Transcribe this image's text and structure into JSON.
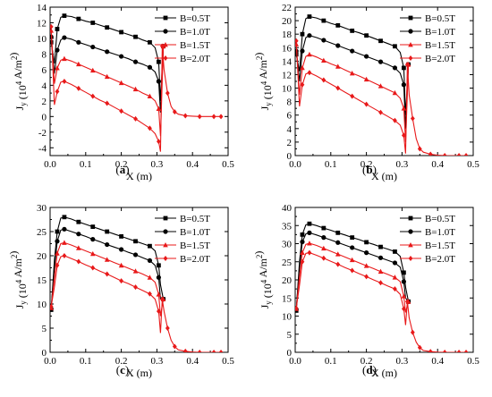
{
  "figure": {
    "xlabel": "X (m)",
    "ylabel_main": "J",
    "ylabel_sub": "y",
    "ylabel_unit": "(10",
    "ylabel_exp": "4",
    "ylabel_rest": " A/m",
    "ylabel_exp2": "2",
    "ylabel_close": ")"
  },
  "chart_data": [
    {
      "type": "line",
      "panel_label": "(a)",
      "xlabel": "X (m)",
      "ylabel": "Jy (10^4 A/m^2)",
      "xlim": [
        0.0,
        0.5
      ],
      "ylim": [
        -5,
        14
      ],
      "xticks": [
        0.0,
        0.1,
        0.2,
        0.3,
        0.4,
        0.5
      ],
      "yticks": [
        -4,
        -2,
        0,
        2,
        4,
        6,
        8,
        10,
        12,
        14
      ],
      "legend_position": "top-right",
      "series": [
        {
          "name": "B=0.5T",
          "marker": "square",
          "color": "#000000",
          "x": [
            0.003,
            0.012,
            0.02,
            0.03,
            0.04,
            0.06,
            0.08,
            0.1,
            0.12,
            0.14,
            0.16,
            0.18,
            0.2,
            0.22,
            0.24,
            0.26,
            0.28,
            0.295,
            0.305,
            0.31,
            0.318
          ],
          "y": [
            9.5,
            6.8,
            11.2,
            12.7,
            12.9,
            12.8,
            12.5,
            12.2,
            12.0,
            11.7,
            11.4,
            11.1,
            10.8,
            10.5,
            10.2,
            9.8,
            9.5,
            8.8,
            7.0,
            2.0,
            9.0
          ]
        },
        {
          "name": "B=1.0T",
          "marker": "circle",
          "color": "#000000",
          "x": [
            0.003,
            0.012,
            0.02,
            0.03,
            0.04,
            0.06,
            0.08,
            0.1,
            0.12,
            0.14,
            0.16,
            0.18,
            0.2,
            0.22,
            0.24,
            0.26,
            0.28,
            0.295,
            0.305,
            0.31,
            0.318
          ],
          "y": [
            10.2,
            5.5,
            8.5,
            9.8,
            10.1,
            9.9,
            9.5,
            9.2,
            8.9,
            8.6,
            8.3,
            8.0,
            7.7,
            7.4,
            7.0,
            6.7,
            6.3,
            5.7,
            4.5,
            0.5,
            9.0
          ]
        },
        {
          "name": "B=1.5T",
          "marker": "triangle",
          "color": "#e8191a",
          "x": [
            0.003,
            0.012,
            0.02,
            0.03,
            0.04,
            0.06,
            0.08,
            0.1,
            0.12,
            0.14,
            0.16,
            0.18,
            0.2,
            0.22,
            0.24,
            0.26,
            0.28,
            0.295,
            0.305,
            0.31,
            0.318
          ],
          "y": [
            11.0,
            4.2,
            6.2,
            7.2,
            7.4,
            7.1,
            6.7,
            6.3,
            5.9,
            5.5,
            5.1,
            4.7,
            4.3,
            3.9,
            3.5,
            3.0,
            2.6,
            2.0,
            1.0,
            -2.5,
            9.0
          ]
        },
        {
          "name": "B=2.0T",
          "marker": "diamond",
          "color": "#e8191a",
          "x": [
            0.003,
            0.012,
            0.02,
            0.03,
            0.04,
            0.06,
            0.08,
            0.1,
            0.12,
            0.14,
            0.16,
            0.18,
            0.2,
            0.22,
            0.24,
            0.26,
            0.28,
            0.295,
            0.305,
            0.31,
            0.315,
            0.32,
            0.33,
            0.34,
            0.35,
            0.36,
            0.38,
            0.4,
            0.42,
            0.44,
            0.46,
            0.48
          ],
          "y": [
            11.5,
            1.5,
            3.2,
            4.4,
            4.5,
            4.1,
            3.6,
            3.1,
            2.6,
            2.1,
            1.7,
            1.2,
            0.7,
            0.2,
            -0.3,
            -0.9,
            -1.5,
            -2.2,
            -3.2,
            -4.5,
            9.0,
            6.0,
            3.0,
            1.3,
            0.6,
            0.3,
            0.1,
            0.05,
            0.0,
            0.0,
            0.0,
            0.0
          ]
        }
      ]
    },
    {
      "type": "line",
      "panel_label": "(b)",
      "xlabel": "X (m)",
      "ylabel": "Jy (10^4 A/m^2)",
      "xlim": [
        0.0,
        0.5
      ],
      "ylim": [
        0,
        22
      ],
      "xticks": [
        0.0,
        0.1,
        0.2,
        0.3,
        0.4,
        0.5
      ],
      "yticks": [
        0,
        2,
        4,
        6,
        8,
        10,
        12,
        14,
        16,
        18,
        20,
        22
      ],
      "legend_position": "top-right",
      "series": [
        {
          "name": "B=0.5T",
          "marker": "square",
          "color": "#000000",
          "x": [
            0.003,
            0.012,
            0.02,
            0.03,
            0.04,
            0.06,
            0.08,
            0.1,
            0.12,
            0.14,
            0.16,
            0.18,
            0.2,
            0.22,
            0.24,
            0.26,
            0.28,
            0.295,
            0.305,
            0.31,
            0.318
          ],
          "y": [
            15.0,
            12.5,
            18.0,
            20.3,
            20.6,
            20.4,
            20.0,
            19.6,
            19.3,
            18.9,
            18.5,
            18.2,
            17.8,
            17.4,
            17.0,
            16.6,
            16.2,
            15.3,
            13.0,
            6.0,
            13.5
          ]
        },
        {
          "name": "B=1.0T",
          "marker": "circle",
          "color": "#000000",
          "x": [
            0.003,
            0.012,
            0.02,
            0.03,
            0.04,
            0.06,
            0.08,
            0.1,
            0.12,
            0.14,
            0.16,
            0.18,
            0.2,
            0.22,
            0.24,
            0.26,
            0.28,
            0.295,
            0.305,
            0.31,
            0.318
          ],
          "y": [
            15.5,
            11.0,
            15.5,
            17.5,
            17.8,
            17.5,
            17.1,
            16.7,
            16.3,
            15.9,
            15.5,
            15.1,
            14.7,
            14.3,
            13.9,
            13.5,
            13.0,
            12.2,
            10.5,
            4.0,
            13.5
          ]
        },
        {
          "name": "B=1.5T",
          "marker": "triangle",
          "color": "#e8191a",
          "x": [
            0.003,
            0.012,
            0.02,
            0.03,
            0.04,
            0.06,
            0.08,
            0.1,
            0.12,
            0.14,
            0.16,
            0.18,
            0.2,
            0.22,
            0.24,
            0.26,
            0.28,
            0.295,
            0.305,
            0.31,
            0.318
          ],
          "y": [
            16.5,
            9.0,
            13.0,
            14.7,
            15.0,
            14.6,
            14.1,
            13.6,
            13.2,
            12.7,
            12.2,
            11.8,
            11.3,
            10.8,
            10.3,
            9.8,
            9.3,
            8.5,
            7.0,
            2.0,
            13.5
          ]
        },
        {
          "name": "B=2.0T",
          "marker": "diamond",
          "color": "#e8191a",
          "x": [
            0.003,
            0.012,
            0.02,
            0.03,
            0.04,
            0.06,
            0.08,
            0.1,
            0.12,
            0.14,
            0.16,
            0.18,
            0.2,
            0.22,
            0.24,
            0.26,
            0.28,
            0.295,
            0.305,
            0.31,
            0.315,
            0.32,
            0.33,
            0.34,
            0.35,
            0.36,
            0.38,
            0.4,
            0.42,
            0.44,
            0.46,
            0.48
          ],
          "y": [
            17.0,
            7.3,
            10.5,
            12.1,
            12.3,
            11.8,
            11.2,
            10.6,
            10.0,
            9.4,
            8.8,
            8.2,
            7.6,
            7.0,
            6.4,
            5.8,
            5.2,
            4.5,
            3.0,
            0.3,
            13.5,
            9.0,
            5.5,
            2.5,
            1.0,
            0.5,
            0.2,
            0.05,
            0.0,
            0.0,
            0.0,
            0.0
          ]
        }
      ]
    },
    {
      "type": "line",
      "panel_label": "(c)",
      "xlabel": "X (m)",
      "ylabel": "Jy (10^4 A/m^2)",
      "xlim": [
        0.0,
        0.5
      ],
      "ylim": [
        0,
        30
      ],
      "xticks": [
        0.0,
        0.1,
        0.2,
        0.3,
        0.4,
        0.5
      ],
      "yticks": [
        0,
        5,
        10,
        15,
        20,
        25,
        30
      ],
      "legend_position": "top-right",
      "series": [
        {
          "name": "B=0.5T",
          "marker": "square",
          "color": "#000000",
          "x": [
            0.003,
            0.012,
            0.02,
            0.03,
            0.04,
            0.06,
            0.08,
            0.1,
            0.12,
            0.14,
            0.16,
            0.18,
            0.2,
            0.22,
            0.24,
            0.26,
            0.28,
            0.295,
            0.305,
            0.31,
            0.318
          ],
          "y": [
            8.8,
            19.0,
            25.0,
            27.8,
            28.0,
            27.6,
            27.0,
            26.5,
            26.0,
            25.5,
            25.0,
            24.5,
            24.0,
            23.5,
            23.0,
            22.5,
            22.0,
            21.0,
            18.0,
            14.0,
            11.0
          ]
        },
        {
          "name": "B=1.0T",
          "marker": "circle",
          "color": "#000000",
          "x": [
            0.003,
            0.012,
            0.02,
            0.03,
            0.04,
            0.06,
            0.08,
            0.1,
            0.12,
            0.14,
            0.16,
            0.18,
            0.2,
            0.22,
            0.24,
            0.26,
            0.28,
            0.295,
            0.305,
            0.31,
            0.318
          ],
          "y": [
            9.0,
            17.5,
            23.0,
            25.3,
            25.5,
            25.0,
            24.5,
            24.0,
            23.4,
            22.9,
            22.3,
            21.8,
            21.3,
            20.7,
            20.2,
            19.6,
            19.0,
            18.0,
            15.5,
            11.0,
            11.0
          ]
        },
        {
          "name": "B=1.5T",
          "marker": "triangle",
          "color": "#e8191a",
          "x": [
            0.003,
            0.012,
            0.02,
            0.03,
            0.04,
            0.06,
            0.08,
            0.1,
            0.12,
            0.14,
            0.16,
            0.18,
            0.2,
            0.22,
            0.24,
            0.26,
            0.28,
            0.295,
            0.305,
            0.31,
            0.318
          ],
          "y": [
            9.2,
            15.5,
            20.5,
            22.5,
            22.7,
            22.2,
            21.6,
            21.0,
            20.4,
            19.8,
            19.2,
            18.6,
            18.0,
            17.4,
            16.8,
            16.2,
            15.5,
            14.5,
            12.0,
            7.5,
            11.0
          ]
        },
        {
          "name": "B=2.0T",
          "marker": "diamond",
          "color": "#e8191a",
          "x": [
            0.003,
            0.012,
            0.02,
            0.03,
            0.04,
            0.06,
            0.08,
            0.1,
            0.12,
            0.14,
            0.16,
            0.18,
            0.2,
            0.22,
            0.24,
            0.26,
            0.28,
            0.295,
            0.305,
            0.31,
            0.315,
            0.32,
            0.33,
            0.34,
            0.35,
            0.36,
            0.38,
            0.4,
            0.42,
            0.44,
            0.46,
            0.48
          ],
          "y": [
            9.5,
            13.5,
            18.0,
            19.8,
            20.0,
            19.4,
            18.8,
            18.1,
            17.5,
            16.8,
            16.2,
            15.5,
            14.8,
            14.2,
            13.5,
            12.8,
            12.1,
            11.0,
            8.5,
            4.0,
            11.0,
            8.5,
            5.0,
            2.5,
            1.2,
            0.5,
            0.2,
            0.05,
            0.0,
            0.0,
            0.0,
            0.0
          ]
        }
      ]
    },
    {
      "type": "line",
      "panel_label": "(d)",
      "xlabel": "X (m)",
      "ylabel": "Jy (10^4 A/m^2)",
      "xlim": [
        0.0,
        0.5
      ],
      "ylim": [
        0,
        40
      ],
      "xticks": [
        0.0,
        0.1,
        0.2,
        0.3,
        0.4,
        0.5
      ],
      "yticks": [
        0,
        5,
        10,
        15,
        20,
        25,
        30,
        35,
        40
      ],
      "legend_position": "top-right",
      "series": [
        {
          "name": "B=0.5T",
          "marker": "square",
          "color": "#000000",
          "x": [
            0.003,
            0.012,
            0.02,
            0.03,
            0.04,
            0.06,
            0.08,
            0.1,
            0.12,
            0.14,
            0.16,
            0.18,
            0.2,
            0.22,
            0.24,
            0.26,
            0.28,
            0.295,
            0.305,
            0.31,
            0.318
          ],
          "y": [
            11.5,
            25.0,
            32.5,
            35.2,
            35.5,
            35.0,
            34.3,
            33.7,
            33.0,
            32.4,
            31.7,
            31.1,
            30.4,
            29.8,
            29.1,
            28.5,
            27.8,
            26.5,
            22.0,
            18.0,
            14.0
          ]
        },
        {
          "name": "B=1.0T",
          "marker": "circle",
          "color": "#000000",
          "x": [
            0.003,
            0.012,
            0.02,
            0.03,
            0.04,
            0.06,
            0.08,
            0.1,
            0.12,
            0.14,
            0.16,
            0.18,
            0.2,
            0.22,
            0.24,
            0.26,
            0.28,
            0.295,
            0.305,
            0.31,
            0.318
          ],
          "y": [
            11.8,
            23.5,
            30.5,
            32.7,
            33.0,
            32.4,
            31.7,
            31.0,
            30.3,
            29.6,
            28.9,
            28.2,
            27.5,
            26.8,
            26.1,
            25.4,
            24.7,
            23.5,
            19.5,
            15.0,
            14.0
          ]
        },
        {
          "name": "B=1.5T",
          "marker": "triangle",
          "color": "#e8191a",
          "x": [
            0.003,
            0.012,
            0.02,
            0.03,
            0.04,
            0.06,
            0.08,
            0.1,
            0.12,
            0.14,
            0.16,
            0.18,
            0.2,
            0.22,
            0.24,
            0.26,
            0.28,
            0.295,
            0.305,
            0.31,
            0.318
          ],
          "y": [
            12.0,
            21.0,
            27.5,
            29.8,
            30.1,
            29.5,
            28.7,
            27.9,
            27.1,
            26.3,
            25.5,
            24.7,
            23.9,
            23.1,
            22.3,
            21.5,
            20.7,
            19.5,
            15.5,
            11.0,
            14.0
          ]
        },
        {
          "name": "B=2.0T",
          "marker": "diamond",
          "color": "#e8191a",
          "x": [
            0.003,
            0.012,
            0.02,
            0.03,
            0.04,
            0.06,
            0.08,
            0.1,
            0.12,
            0.14,
            0.16,
            0.18,
            0.2,
            0.22,
            0.24,
            0.26,
            0.28,
            0.295,
            0.305,
            0.31,
            0.315,
            0.32,
            0.33,
            0.34,
            0.35,
            0.36,
            0.38,
            0.4,
            0.42,
            0.44,
            0.46,
            0.48
          ],
          "y": [
            12.2,
            18.5,
            25.0,
            27.3,
            27.5,
            26.8,
            26.0,
            25.1,
            24.3,
            23.4,
            22.6,
            21.7,
            20.9,
            20.0,
            19.2,
            18.3,
            17.5,
            16.0,
            12.0,
            7.5,
            14.0,
            9.5,
            5.5,
            2.8,
            1.3,
            0.5,
            0.2,
            0.05,
            0.0,
            0.0,
            0.0,
            0.0
          ]
        }
      ]
    }
  ]
}
